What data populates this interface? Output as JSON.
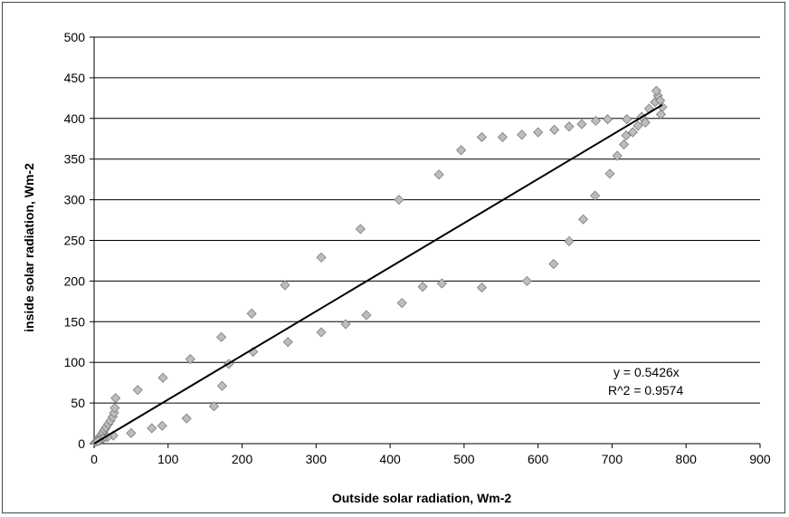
{
  "chart_data": {
    "type": "scatter",
    "title": "",
    "xlabel": "Outside solar radiation, Wm-2",
    "ylabel": "inside solar radiation, Wm-2",
    "xlim": [
      0,
      900
    ],
    "ylim": [
      0,
      500
    ],
    "x_ticks": [
      "0",
      "100",
      "200",
      "300",
      "400",
      "500",
      "600",
      "700",
      "800",
      "900"
    ],
    "y_ticks": [
      "0",
      "50",
      "100",
      "150",
      "200",
      "250",
      "300",
      "350",
      "400",
      "450",
      "500"
    ],
    "grid": "horizontal",
    "marker": "diamond",
    "marker_color": "#bdbdbd",
    "trendline": {
      "slope": 0.5426,
      "x_range": [
        0,
        768
      ],
      "color": "#000000"
    },
    "annotations": [
      "y = 0.5426x",
      "R^2 = 0.9574"
    ],
    "points": [
      [
        2,
        2
      ],
      [
        4,
        4
      ],
      [
        6,
        6
      ],
      [
        8,
        9
      ],
      [
        10,
        11
      ],
      [
        12,
        14
      ],
      [
        14,
        17
      ],
      [
        16,
        20
      ],
      [
        19,
        24
      ],
      [
        22,
        28
      ],
      [
        25,
        33
      ],
      [
        27,
        38
      ],
      [
        28,
        44
      ],
      [
        29,
        56
      ],
      [
        59,
        66
      ],
      [
        93,
        81
      ],
      [
        130,
        104
      ],
      [
        172,
        131
      ],
      [
        213,
        160
      ],
      [
        258,
        195
      ],
      [
        307,
        229
      ],
      [
        360,
        264
      ],
      [
        412,
        300
      ],
      [
        466,
        331
      ],
      [
        496,
        361
      ],
      [
        524,
        377
      ],
      [
        552,
        377
      ],
      [
        578,
        380
      ],
      [
        600,
        383
      ],
      [
        622,
        386
      ],
      [
        642,
        390
      ],
      [
        659,
        393
      ],
      [
        678,
        397
      ],
      [
        694,
        399
      ],
      [
        720,
        399
      ],
      [
        740,
        402
      ],
      [
        750,
        412
      ],
      [
        758,
        420
      ],
      [
        762,
        428
      ],
      [
        760,
        434
      ],
      [
        765,
        422
      ],
      [
        768,
        414
      ],
      [
        766,
        405
      ],
      [
        745,
        395
      ],
      [
        735,
        391
      ],
      [
        728,
        383
      ],
      [
        719,
        379
      ],
      [
        716,
        368
      ],
      [
        707,
        354
      ],
      [
        697,
        332
      ],
      [
        677,
        305
      ],
      [
        661,
        276
      ],
      [
        642,
        249
      ],
      [
        621,
        221
      ],
      [
        585,
        200
      ],
      [
        524,
        192
      ],
      [
        470,
        197
      ],
      [
        444,
        193
      ],
      [
        416,
        173
      ],
      [
        368,
        158
      ],
      [
        340,
        147
      ],
      [
        307,
        137
      ],
      [
        262,
        125
      ],
      [
        215,
        113
      ],
      [
        182,
        98
      ],
      [
        173,
        71
      ],
      [
        162,
        46
      ],
      [
        125,
        31
      ],
      [
        92,
        22
      ],
      [
        78,
        19
      ],
      [
        50,
        13
      ],
      [
        26,
        10
      ],
      [
        18,
        8
      ],
      [
        12,
        6
      ],
      [
        8,
        4
      ],
      [
        5,
        3
      ]
    ]
  }
}
